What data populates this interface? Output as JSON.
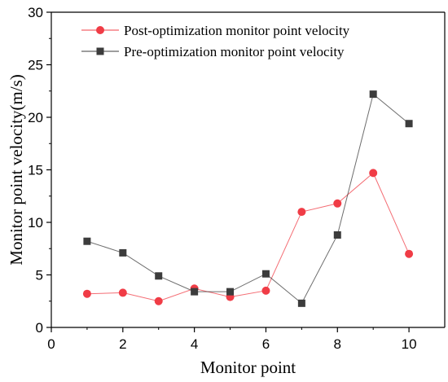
{
  "chart_data": {
    "type": "line",
    "title": "",
    "xlabel": "Monitor point",
    "ylabel": "Monitor point velocity(m/s)",
    "xlim": [
      0,
      11
    ],
    "ylim": [
      0,
      30
    ],
    "xticks": [
      0,
      2,
      4,
      6,
      8,
      10
    ],
    "yticks": [
      0,
      5,
      10,
      15,
      20,
      25,
      30
    ],
    "grid": false,
    "legend_position": "top-center",
    "x": [
      1,
      2,
      3,
      4,
      5,
      6,
      7,
      8,
      9,
      10
    ],
    "series": [
      {
        "name": "Post-optimization monitor point velocity",
        "marker": "circle",
        "color": "#f03c46",
        "values": [
          3.2,
          3.3,
          2.5,
          3.7,
          2.9,
          3.5,
          11.0,
          11.8,
          14.7,
          7.0
        ]
      },
      {
        "name": "Pre-optimization monitor point velocity",
        "marker": "square",
        "color": "#3c3c3c",
        "values": [
          8.2,
          7.1,
          4.9,
          3.4,
          3.4,
          5.1,
          2.3,
          8.8,
          22.2,
          19.4
        ]
      }
    ]
  }
}
